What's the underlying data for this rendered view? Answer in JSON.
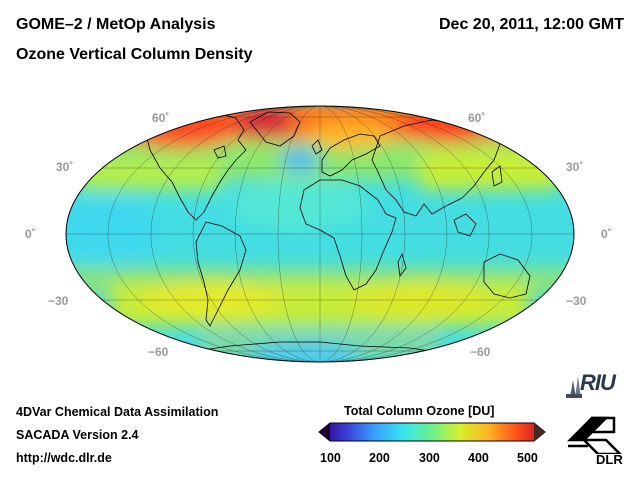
{
  "header": {
    "title_left": "GOME–2 / MetOp Analysis",
    "title_right": "Dec 20, 2011, 12:00 GMT",
    "subtitle": "Ozone Vertical Column Density"
  },
  "map": {
    "projection": "Mollweide",
    "lat_labels_left": [
      "60˚",
      "30˚",
      "0˚",
      "−30",
      "−60"
    ],
    "lat_labels_right": [
      "60˚",
      "30˚",
      "0˚",
      "−30",
      "−60"
    ]
  },
  "colorbar": {
    "title": "Total Column Ozone [DU]",
    "ticks": [
      "100",
      "200",
      "300",
      "400",
      "500"
    ],
    "colors": [
      "#2a0078",
      "#3b3fd9",
      "#37a3ff",
      "#36e6ef",
      "#6cf08a",
      "#d6ef2a",
      "#ffb21f",
      "#ff4f18",
      "#c40d38"
    ]
  },
  "footer": {
    "line1": "4DVar Chemical Data Assimilation",
    "line2": "SACADA Version 2.4",
    "url": "http://wdc.dlr.de"
  },
  "logos": {
    "riu": "RIU",
    "dlr": "DLR"
  },
  "icons": [
    "riu-logo-icon",
    "dlr-logo-icon"
  ]
}
